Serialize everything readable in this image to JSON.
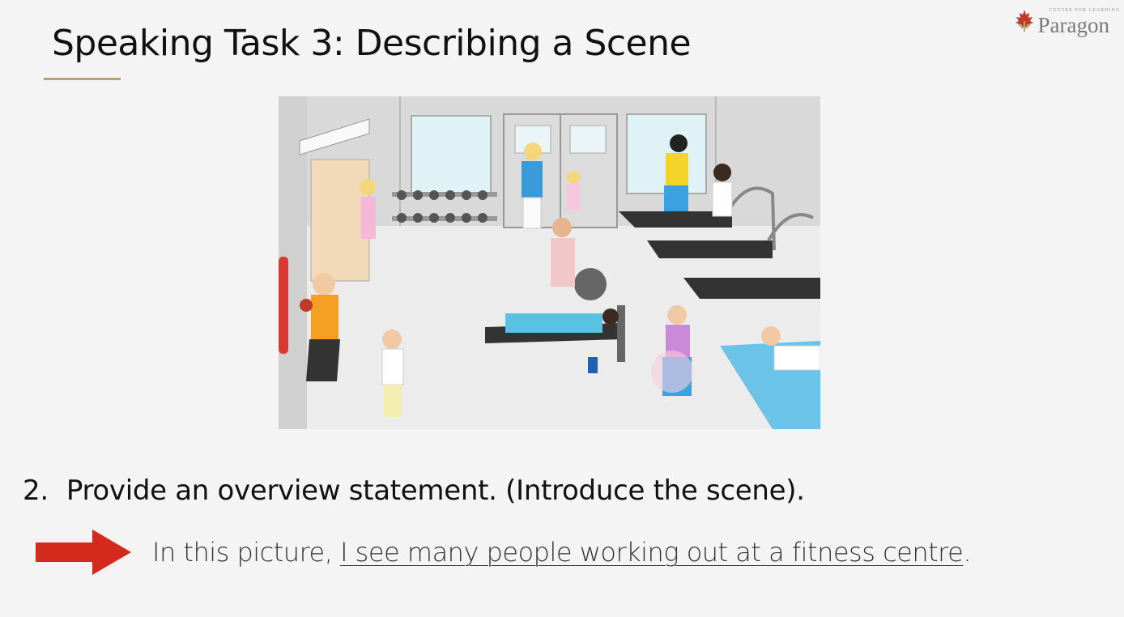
{
  "slide": {
    "title": "Speaking Task 3: Describing a Scene",
    "logo": {
      "tagline": "CENTRE FOR LEARNING",
      "brand": "Paragon",
      "icon": "maple-leaf-icon"
    },
    "illustration": {
      "icon": "gym-scene-illustration"
    },
    "point": {
      "number": "2.",
      "text": "Provide an overview statement.  (Introduce the scene)."
    },
    "answer": {
      "arrow_icon": "right-arrow-icon",
      "arrow_color": "#d42a1e",
      "prefix": "In this picture, ",
      "underlined": "I see many people working out at a fitness centre",
      "suffix": "."
    }
  }
}
